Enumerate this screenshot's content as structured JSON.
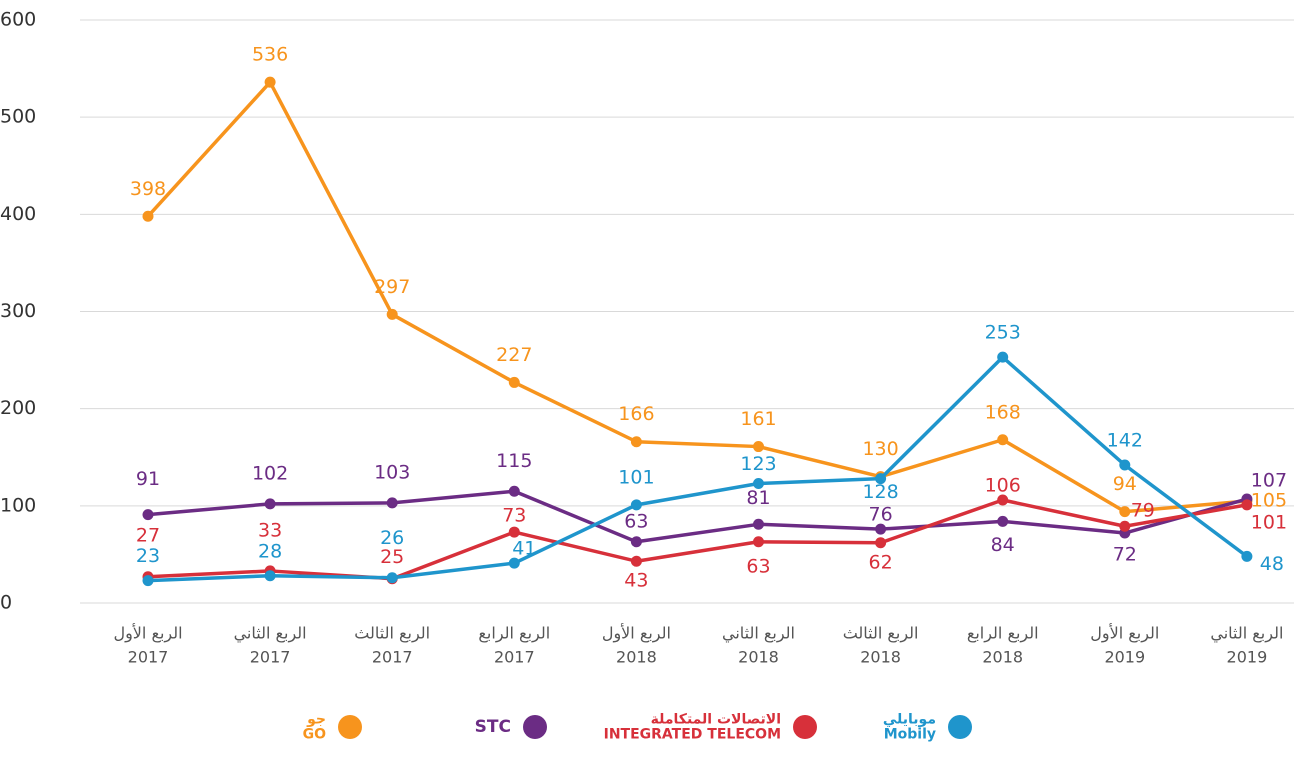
{
  "chart_data": {
    "type": "line",
    "categories": [
      [
        "الربع الأول",
        "2017"
      ],
      [
        "الربع الثاني",
        "2017"
      ],
      [
        "الربع الثالث",
        "2017"
      ],
      [
        "الربع الرابع",
        "2017"
      ],
      [
        "الربع الأول",
        "2018"
      ],
      [
        "الربع الثاني",
        "2018"
      ],
      [
        "الربع الثالث",
        "2018"
      ],
      [
        "الربع الرابع",
        "2018"
      ],
      [
        "الربع الأول",
        "2019"
      ],
      [
        "الربع الثاني",
        "2019"
      ]
    ],
    "series": [
      {
        "name": [
          "جو",
          "GO"
        ],
        "color": "#f7941d",
        "values": [
          398,
          536,
          297,
          227,
          166,
          161,
          130,
          168,
          94,
          105
        ]
      },
      {
        "name": [
          "STC"
        ],
        "color": "#6b2c84",
        "values": [
          91,
          102,
          103,
          115,
          63,
          81,
          76,
          84,
          72,
          107
        ]
      },
      {
        "name": [
          "الاتصالات المتكاملة",
          "INTEGRATED TELECOM"
        ],
        "color": "#d7303a",
        "values": [
          27,
          33,
          25,
          73,
          43,
          63,
          62,
          106,
          79,
          101
        ]
      },
      {
        "name": [
          "موبايلي",
          "Mobily"
        ],
        "color": "#1f95cc",
        "values": [
          23,
          28,
          26,
          41,
          101,
          123,
          128,
          253,
          142,
          48
        ]
      }
    ],
    "ylim": [
      0,
      600
    ],
    "yticks": [
      0,
      100,
      200,
      300,
      400,
      500,
      600
    ],
    "grid": true
  }
}
